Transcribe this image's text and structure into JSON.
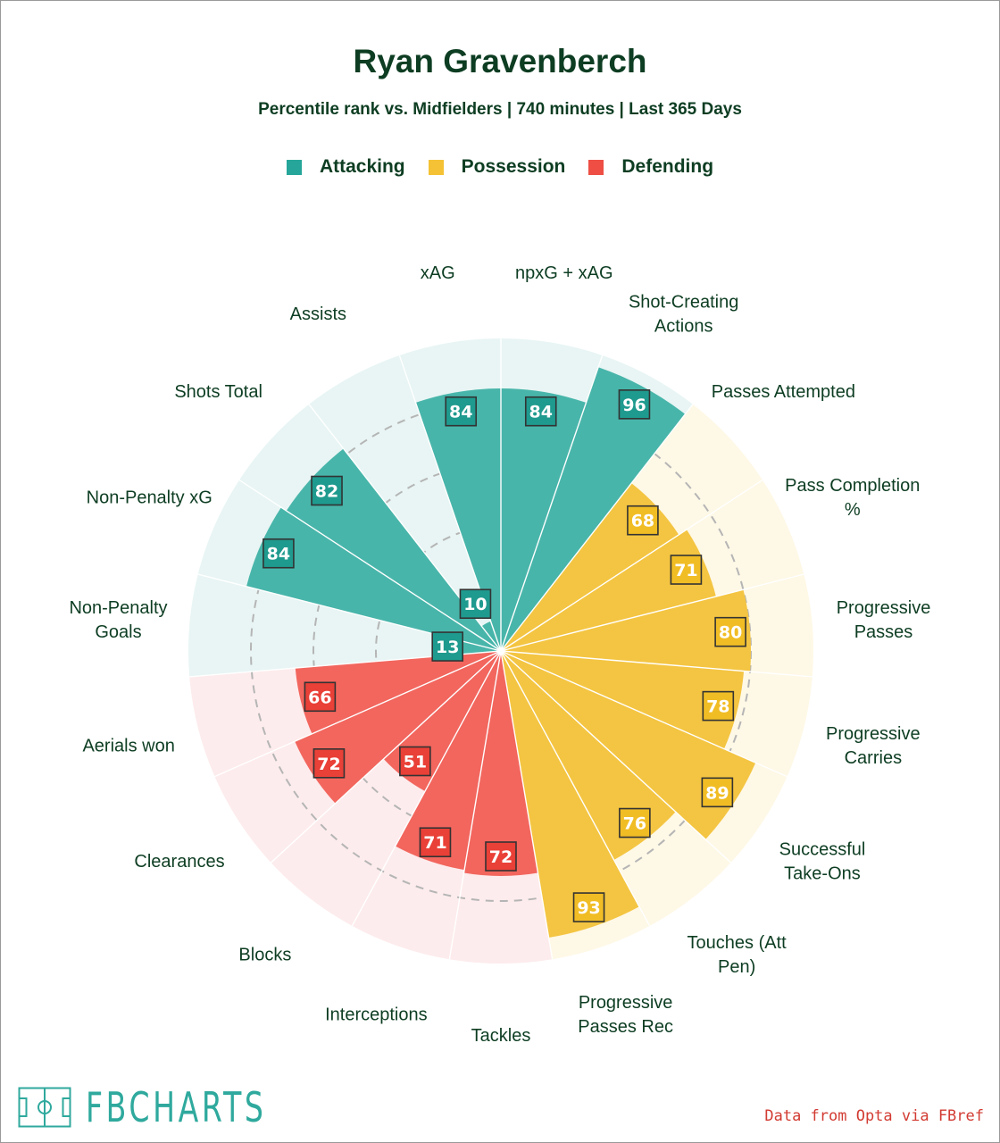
{
  "title": "Ryan Gravenberch",
  "subtitle": "Percentile rank vs. Midfielders | 740 minutes | Last 365 Days",
  "legend": [
    {
      "label": "Attacking",
      "color": "#26a69a"
    },
    {
      "label": "Possession",
      "color": "#f4c234"
    },
    {
      "label": "Defending",
      "color": "#ee4e44"
    }
  ],
  "chart_data": {
    "type": "polar-bar",
    "title": "Ryan Gravenberch",
    "subtitle": "Percentile rank vs. Midfielders | 740 minutes | Last 365 Days",
    "rlim": [
      0,
      100
    ],
    "grid_rings": [
      20,
      40,
      60,
      80
    ],
    "categories": [
      {
        "label": "npxG + xAG",
        "value": 84,
        "group": "Attacking"
      },
      {
        "label": "Shot-Creating Actions",
        "value": 96,
        "group": "Attacking"
      },
      {
        "label": "Passes Attempted",
        "value": 68,
        "group": "Possession"
      },
      {
        "label": "Pass Completion %",
        "value": 71,
        "group": "Possession"
      },
      {
        "label": "Progressive Passes",
        "value": 80,
        "group": "Possession"
      },
      {
        "label": "Progressive Carries",
        "value": 78,
        "group": "Possession"
      },
      {
        "label": "Successful Take-Ons",
        "value": 89,
        "group": "Possession"
      },
      {
        "label": "Touches (Att Pen)",
        "value": 76,
        "group": "Possession"
      },
      {
        "label": "Progressive Passes Rec",
        "value": 93,
        "group": "Possession"
      },
      {
        "label": "Tackles",
        "value": 72,
        "group": "Defending"
      },
      {
        "label": "Interceptions",
        "value": 71,
        "group": "Defending"
      },
      {
        "label": "Blocks",
        "value": 51,
        "group": "Defending"
      },
      {
        "label": "Clearances",
        "value": 72,
        "group": "Defending"
      },
      {
        "label": "Aerials won",
        "value": 66,
        "group": "Defending"
      },
      {
        "label": "Non-Penalty Goals",
        "value": 13,
        "group": "Attacking"
      },
      {
        "label": "Non-Penalty xG",
        "value": 84,
        "group": "Attacking"
      },
      {
        "label": "Shots Total",
        "value": 82,
        "group": "Attacking"
      },
      {
        "label": "Assists",
        "value": 10,
        "group": "Attacking"
      },
      {
        "label": "xAG",
        "value": 84,
        "group": "Attacking"
      }
    ],
    "group_colors": {
      "Attacking": {
        "bar": "#48b5aa",
        "bg": "#e8f5f4",
        "box": "#1f9a8e"
      },
      "Possession": {
        "bar": "#f4c542",
        "bg": "#fef8e6",
        "box": "#f1bd25"
      },
      "Defending": {
        "bar": "#f2665e",
        "bg": "#fdeced",
        "box": "#e94037"
      }
    }
  },
  "footer": {
    "logo_text": "FBCHARTS",
    "source": "Data from Opta via FBref"
  }
}
